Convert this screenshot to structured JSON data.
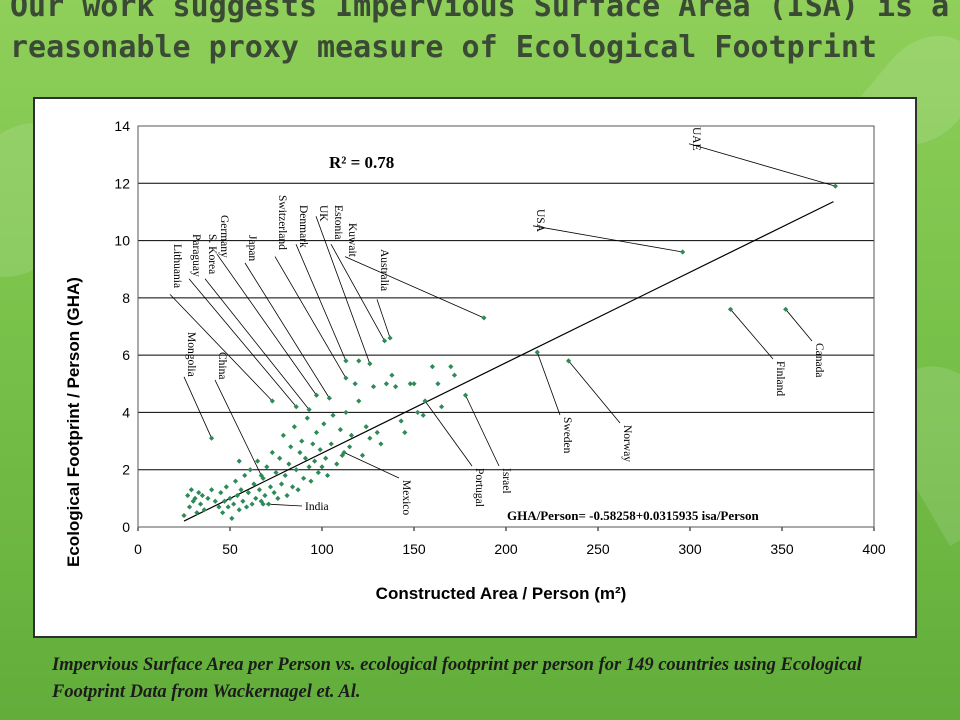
{
  "headline": "Our work suggests Impervious Surface Area (ISA) is a reasonable proxy measure of Ecological Footprint",
  "caption": "Impervious Surface Area per Person vs. ecological footprint per person for 149 countries using Ecological Footprint Data from Wackernagel et. Al.",
  "colors": {
    "background": "#7cc44c",
    "points": "#2e8b57",
    "grid": "#000000"
  },
  "chart_data": {
    "type": "scatter",
    "title": "",
    "xlabel": "Constructed Area / Person (m²)",
    "ylabel": "Ecological Footprint / Person (GHA)",
    "xlim": [
      0,
      400
    ],
    "ylim": [
      0,
      14
    ],
    "xticks": [
      "0",
      "50",
      "100",
      "150",
      "200",
      "250",
      "300",
      "350",
      "400"
    ],
    "yticks": [
      "0",
      "2",
      "4",
      "6",
      "8",
      "10",
      "12",
      "14"
    ],
    "grid": "horizontal",
    "r2_label": "R² = 0.78",
    "equation_label": "GHA/Person= -0.58258+0.0315935 isa/Person",
    "trendline": {
      "intercept": -0.58258,
      "slope": 0.0315935,
      "x_range": [
        25,
        378
      ]
    },
    "labeled_points": [
      {
        "name": "UAE",
        "x": 379,
        "y": 11.9
      },
      {
        "name": "USA",
        "x": 296,
        "y": 9.6
      },
      {
        "name": "Kuwait",
        "x": 188,
        "y": 7.3
      },
      {
        "name": "Finland",
        "x": 322,
        "y": 7.6
      },
      {
        "name": "Canada",
        "x": 352,
        "y": 7.6
      },
      {
        "name": "Sweden",
        "x": 217,
        "y": 6.1
      },
      {
        "name": "Norway",
        "x": 234,
        "y": 5.8
      },
      {
        "name": "Australia",
        "x": 137,
        "y": 6.6
      },
      {
        "name": "Estonia",
        "x": 134,
        "y": 6.5
      },
      {
        "name": "UK",
        "x": 126,
        "y": 5.7
      },
      {
        "name": "Denmark",
        "x": 113,
        "y": 5.8
      },
      {
        "name": "Switzerland",
        "x": 113,
        "y": 5.2
      },
      {
        "name": "Japan",
        "x": 104,
        "y": 4.5
      },
      {
        "name": "Germany",
        "x": 97,
        "y": 4.6
      },
      {
        "name": "S. Korea",
        "x": 93,
        "y": 4.1
      },
      {
        "name": "Paraguay",
        "x": 86,
        "y": 4.2
      },
      {
        "name": "Lithuania",
        "x": 73,
        "y": 4.4
      },
      {
        "name": "Mongolia",
        "x": 40,
        "y": 3.1
      },
      {
        "name": "China",
        "x": 67,
        "y": 1.8
      },
      {
        "name": "India",
        "x": 68,
        "y": 0.8
      },
      {
        "name": "Mexico",
        "x": 112,
        "y": 2.6
      },
      {
        "name": "Portugal",
        "x": 156,
        "y": 4.4
      },
      {
        "name": "Israel",
        "x": 178,
        "y": 4.6
      }
    ],
    "points": [
      {
        "x": 25,
        "y": 0.4
      },
      {
        "x": 27,
        "y": 1.1
      },
      {
        "x": 28,
        "y": 0.7
      },
      {
        "x": 29,
        "y": 1.3
      },
      {
        "x": 30,
        "y": 0.9
      },
      {
        "x": 31,
        "y": 1.0
      },
      {
        "x": 32,
        "y": 0.5
      },
      {
        "x": 33,
        "y": 1.2
      },
      {
        "x": 34,
        "y": 0.8
      },
      {
        "x": 35,
        "y": 1.1
      },
      {
        "x": 36,
        "y": 0.6
      },
      {
        "x": 38,
        "y": 1.0
      },
      {
        "x": 40,
        "y": 1.3
      },
      {
        "x": 42,
        "y": 0.9
      },
      {
        "x": 44,
        "y": 0.7
      },
      {
        "x": 45,
        "y": 1.2
      },
      {
        "x": 46,
        "y": 0.5
      },
      {
        "x": 47,
        "y": 0.9
      },
      {
        "x": 48,
        "y": 1.4
      },
      {
        "x": 49,
        "y": 0.7
      },
      {
        "x": 50,
        "y": 1.0
      },
      {
        "x": 51,
        "y": 0.3
      },
      {
        "x": 52,
        "y": 0.8
      },
      {
        "x": 53,
        "y": 1.6
      },
      {
        "x": 54,
        "y": 1.1
      },
      {
        "x": 55,
        "y": 0.6
      },
      {
        "x": 55,
        "y": 2.3
      },
      {
        "x": 56,
        "y": 1.3
      },
      {
        "x": 57,
        "y": 0.9
      },
      {
        "x": 58,
        "y": 1.8
      },
      {
        "x": 59,
        "y": 0.7
      },
      {
        "x": 60,
        "y": 1.2
      },
      {
        "x": 61,
        "y": 2.0
      },
      {
        "x": 62,
        "y": 0.8
      },
      {
        "x": 63,
        "y": 1.5
      },
      {
        "x": 64,
        "y": 1.0
      },
      {
        "x": 65,
        "y": 2.3
      },
      {
        "x": 66,
        "y": 1.3
      },
      {
        "x": 67,
        "y": 0.9
      },
      {
        "x": 68,
        "y": 1.7
      },
      {
        "x": 69,
        "y": 1.1
      },
      {
        "x": 70,
        "y": 2.1
      },
      {
        "x": 71,
        "y": 0.8
      },
      {
        "x": 72,
        "y": 1.4
      },
      {
        "x": 73,
        "y": 2.6
      },
      {
        "x": 74,
        "y": 1.2
      },
      {
        "x": 75,
        "y": 1.9
      },
      {
        "x": 76,
        "y": 1.0
      },
      {
        "x": 77,
        "y": 2.4
      },
      {
        "x": 78,
        "y": 1.5
      },
      {
        "x": 79,
        "y": 3.2
      },
      {
        "x": 80,
        "y": 1.8
      },
      {
        "x": 81,
        "y": 1.1
      },
      {
        "x": 82,
        "y": 2.2
      },
      {
        "x": 83,
        "y": 2.8
      },
      {
        "x": 84,
        "y": 1.4
      },
      {
        "x": 85,
        "y": 3.5
      },
      {
        "x": 86,
        "y": 2.0
      },
      {
        "x": 87,
        "y": 1.3
      },
      {
        "x": 88,
        "y": 2.6
      },
      {
        "x": 89,
        "y": 3.0
      },
      {
        "x": 90,
        "y": 1.7
      },
      {
        "x": 91,
        "y": 2.4
      },
      {
        "x": 92,
        "y": 3.8
      },
      {
        "x": 93,
        "y": 2.1
      },
      {
        "x": 94,
        "y": 1.6
      },
      {
        "x": 95,
        "y": 2.9
      },
      {
        "x": 96,
        "y": 2.3
      },
      {
        "x": 97,
        "y": 3.3
      },
      {
        "x": 98,
        "y": 1.9
      },
      {
        "x": 99,
        "y": 2.7
      },
      {
        "x": 100,
        "y": 2.1
      },
      {
        "x": 101,
        "y": 3.6
      },
      {
        "x": 102,
        "y": 2.4
      },
      {
        "x": 103,
        "y": 1.8
      },
      {
        "x": 105,
        "y": 2.9
      },
      {
        "x": 106,
        "y": 3.9
      },
      {
        "x": 108,
        "y": 2.2
      },
      {
        "x": 110,
        "y": 3.4
      },
      {
        "x": 111,
        "y": 2.5
      },
      {
        "x": 113,
        "y": 4.0
      },
      {
        "x": 115,
        "y": 2.8
      },
      {
        "x": 116,
        "y": 3.2
      },
      {
        "x": 118,
        "y": 5.0
      },
      {
        "x": 120,
        "y": 4.4
      },
      {
        "x": 122,
        "y": 2.5
      },
      {
        "x": 124,
        "y": 3.5
      },
      {
        "x": 126,
        "y": 3.1
      },
      {
        "x": 128,
        "y": 4.9
      },
      {
        "x": 130,
        "y": 3.3
      },
      {
        "x": 132,
        "y": 2.9
      },
      {
        "x": 135,
        "y": 5.0
      },
      {
        "x": 138,
        "y": 5.3
      },
      {
        "x": 140,
        "y": 4.9
      },
      {
        "x": 143,
        "y": 3.7
      },
      {
        "x": 145,
        "y": 3.3
      },
      {
        "x": 148,
        "y": 5.0
      },
      {
        "x": 150,
        "y": 5.0
      },
      {
        "x": 152,
        "y": 4.0
      },
      {
        "x": 155,
        "y": 3.9
      },
      {
        "x": 160,
        "y": 5.6
      },
      {
        "x": 163,
        "y": 5.0
      },
      {
        "x": 165,
        "y": 4.2
      },
      {
        "x": 170,
        "y": 5.6
      },
      {
        "x": 172,
        "y": 5.3
      },
      {
        "x": 120,
        "y": 5.8
      }
    ]
  }
}
